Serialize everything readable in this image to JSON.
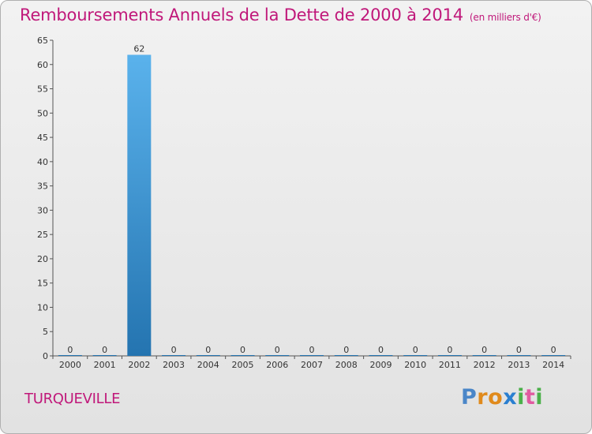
{
  "page": {
    "title": "Remboursements Annuels de la Dette de 2000 à 2014",
    "unit": "(en milliers d'€)",
    "place": "TURQUEVILLE",
    "logo": {
      "text": "Proxiti",
      "letters": [
        {
          "ch": "P",
          "color": "#4a86c8"
        },
        {
          "ch": "r",
          "color": "#e08a1c"
        },
        {
          "ch": "o",
          "color": "#e08a1c"
        },
        {
          "ch": "x",
          "color": "#2a7fd0"
        },
        {
          "ch": "i",
          "color": "#4bb04a"
        },
        {
          "ch": "t",
          "color": "#e05aa0"
        },
        {
          "ch": "i",
          "color": "#4bb04a"
        }
      ]
    }
  },
  "chart_data": {
    "type": "bar",
    "categories": [
      "2000",
      "2001",
      "2002",
      "2003",
      "2004",
      "2005",
      "2006",
      "2007",
      "2008",
      "2009",
      "2010",
      "2011",
      "2012",
      "2013",
      "2014"
    ],
    "values": [
      0,
      0,
      62,
      0,
      0,
      0,
      0,
      0,
      0,
      0,
      0,
      0,
      0,
      0,
      0
    ],
    "ylim": [
      0,
      65
    ],
    "yticks": [
      0,
      5,
      10,
      15,
      20,
      25,
      30,
      35,
      40,
      45,
      50,
      55,
      60,
      65
    ],
    "data_labels": [
      "0",
      "0",
      "62",
      "0",
      "0",
      "0",
      "0",
      "0",
      "0",
      "0",
      "0",
      "0",
      "0",
      "0",
      "0"
    ],
    "grid": false,
    "colors": {
      "bar_top": "#5ab2ec",
      "bar_bottom": "#2474b0",
      "axis": "#555555"
    }
  }
}
